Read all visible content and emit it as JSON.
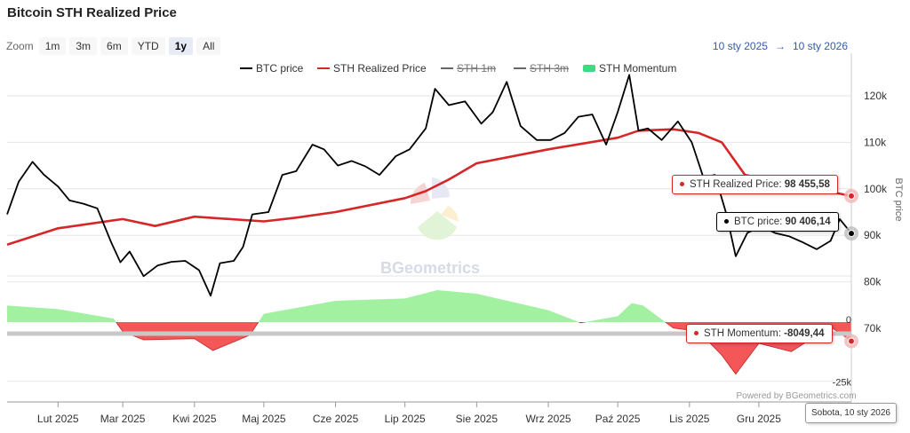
{
  "title": "Bitcoin STH Realized Price",
  "zoom": {
    "label": "Zoom",
    "buttons": [
      "1m",
      "3m",
      "6m",
      "YTD",
      "1y",
      "All"
    ],
    "active": "1y"
  },
  "range": {
    "from": "10 sty 2025",
    "arrow": "→",
    "to": "10 sty 2026"
  },
  "watermark": "BGeometrics",
  "credit": "Powered by BGeometrics.com",
  "tooltips": {
    "sth_realized": {
      "label": "STH Realized Price:",
      "value": "98 455,58"
    },
    "btc_price": {
      "label": "BTC price:",
      "value": "90 406,14"
    },
    "sth_momentum": {
      "label": "STH Momentum:",
      "value": "-8049,44"
    },
    "date": "Sobota, 10 sty 2026"
  },
  "colors": {
    "btc": "#000000",
    "sth": "#d62728",
    "momentum_pos": "#90ee90",
    "momentum_neg": "#f24545",
    "accent": "#335cad"
  },
  "chart_data": {
    "type": "line",
    "title": "Bitcoin STH Realized Price",
    "x_ticks": [
      "Lut 2025",
      "Mar 2025",
      "Kwi 2025",
      "Maj 2025",
      "Cze 2025",
      "Lip 2025",
      "Sie 2025",
      "Wrz 2025",
      "Paź 2025",
      "Lis 2025",
      "Gru 2025"
    ],
    "x_range": [
      "2025-01-10",
      "2026-01-10"
    ],
    "ylabel": "BTC price",
    "price_ticks": [
      "120k",
      "110k",
      "100k",
      "90k",
      "80k",
      "70k"
    ],
    "price_range": [
      68000,
      125000
    ],
    "momentum_ticks": [
      "0",
      "-25k"
    ],
    "legend": [
      {
        "name": "BTC price",
        "color": "#000000",
        "visible": true
      },
      {
        "name": "STH Realized Price",
        "color": "#d62728",
        "visible": true
      },
      {
        "name": "STH 1m",
        "color": "#666666",
        "visible": false
      },
      {
        "name": "STH 3m",
        "color": "#666666",
        "visible": false
      },
      {
        "name": "STH Momentum",
        "color": "#3ddc84",
        "visible": true
      }
    ],
    "legend_position": "top-center",
    "series": [
      {
        "name": "BTC price",
        "dates": [
          "2025-01-10",
          "2025-01-15",
          "2025-01-21",
          "2025-01-26",
          "2025-02-01",
          "2025-02-06",
          "2025-02-12",
          "2025-02-18",
          "2025-02-24",
          "2025-02-28",
          "2025-03-04",
          "2025-03-10",
          "2025-03-16",
          "2025-03-22",
          "2025-03-28",
          "2025-04-03",
          "2025-04-08",
          "2025-04-12",
          "2025-04-18",
          "2025-04-22",
          "2025-04-26",
          "2025-05-03",
          "2025-05-09",
          "2025-05-15",
          "2025-05-22",
          "2025-05-27",
          "2025-06-02",
          "2025-06-08",
          "2025-06-14",
          "2025-06-20",
          "2025-06-27",
          "2025-07-03",
          "2025-07-10",
          "2025-07-14",
          "2025-07-20",
          "2025-07-27",
          "2025-08-03",
          "2025-08-08",
          "2025-08-14",
          "2025-08-20",
          "2025-08-27",
          "2025-09-02",
          "2025-09-08",
          "2025-09-14",
          "2025-09-20",
          "2025-09-26",
          "2025-10-01",
          "2025-10-06",
          "2025-10-10",
          "2025-10-14",
          "2025-10-20",
          "2025-10-27",
          "2025-11-02",
          "2025-11-07",
          "2025-11-12",
          "2025-11-17",
          "2025-11-21",
          "2025-11-26",
          "2025-12-02",
          "2025-12-08",
          "2025-12-14",
          "2025-12-20",
          "2025-12-26",
          "2026-01-01",
          "2026-01-05",
          "2026-01-10"
        ],
        "values": [
          94500,
          101500,
          105800,
          103000,
          100500,
          97500,
          96800,
          95800,
          88500,
          84200,
          86500,
          81200,
          83500,
          84300,
          84500,
          82500,
          77000,
          84000,
          84500,
          87500,
          94500,
          95000,
          103000,
          103800,
          109500,
          108500,
          105000,
          106000,
          104800,
          103000,
          107000,
          108500,
          113000,
          121500,
          118000,
          118800,
          114000,
          116500,
          123000,
          113500,
          110500,
          110500,
          112000,
          115500,
          116000,
          109500,
          116500,
          124500,
          112500,
          113000,
          110500,
          114500,
          110000,
          102500,
          103000,
          94500,
          85500,
          90500,
          92000,
          90500,
          89800,
          88500,
          87000,
          88800,
          93500,
          90406
        ]
      },
      {
        "name": "STH Realized Price",
        "dates": [
          "2025-01-10",
          "2025-02-01",
          "2025-03-01",
          "2025-03-15",
          "2025-04-01",
          "2025-05-01",
          "2025-05-15",
          "2025-06-01",
          "2025-07-01",
          "2025-07-10",
          "2025-07-20",
          "2025-08-01",
          "2025-09-01",
          "2025-10-01",
          "2025-10-10",
          "2025-10-25",
          "2025-11-05",
          "2025-11-15",
          "2025-11-25",
          "2025-12-15",
          "2026-01-10"
        ],
        "values": [
          88000,
          91500,
          93500,
          92000,
          94000,
          93000,
          93800,
          95000,
          98000,
          99500,
          102000,
          105500,
          108500,
          111000,
          112500,
          112800,
          112000,
          110000,
          103000,
          101000,
          98456
        ]
      },
      {
        "name": "STH Momentum",
        "dates": [
          "2025-01-10",
          "2025-02-01",
          "2025-02-25",
          "2025-03-01",
          "2025-03-10",
          "2025-04-01",
          "2025-04-09",
          "2025-04-25",
          "2025-05-01",
          "2025-06-01",
          "2025-07-01",
          "2025-07-15",
          "2025-08-01",
          "2025-09-01",
          "2025-09-15",
          "2025-10-01",
          "2025-10-07",
          "2025-10-12",
          "2025-10-25",
          "2025-11-05",
          "2025-11-15",
          "2025-11-21",
          "2025-12-01",
          "2025-12-15",
          "2026-01-01",
          "2026-01-10"
        ],
        "values": [
          7000,
          5500,
          1500,
          -4000,
          -7500,
          -7000,
          -12000,
          -5500,
          3500,
          9000,
          10000,
          13500,
          12000,
          5000,
          -300,
          2500,
          8000,
          7000,
          -2500,
          -4000,
          -14000,
          -22000,
          -9000,
          -12500,
          -2000,
          -8049
        ]
      }
    ]
  }
}
